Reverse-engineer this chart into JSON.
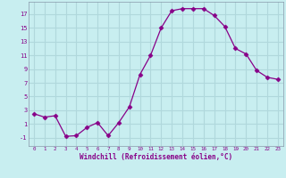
{
  "x": [
    0,
    1,
    2,
    3,
    4,
    5,
    6,
    7,
    8,
    9,
    10,
    11,
    12,
    13,
    14,
    15,
    16,
    17,
    18,
    19,
    20,
    21,
    22,
    23
  ],
  "y": [
    2.5,
    2.0,
    2.2,
    -0.8,
    -0.7,
    0.5,
    1.2,
    -0.7,
    1.2,
    3.5,
    8.2,
    11.0,
    15.0,
    17.5,
    17.8,
    17.8,
    17.8,
    16.8,
    15.2,
    12.0,
    11.2,
    8.8,
    7.8,
    7.5
  ],
  "line_color": "#880088",
  "marker": "D",
  "marker_size": 2.5,
  "bg_color": "#c8eef0",
  "grid_color": "#b0d8dc",
  "xlabel": "Windchill (Refroidissement éolien,°C)",
  "xlabel_color": "#880088",
  "tick_color": "#880088",
  "yticks": [
    -1,
    1,
    3,
    5,
    7,
    9,
    11,
    13,
    15,
    17
  ],
  "xticks": [
    0,
    1,
    2,
    3,
    4,
    5,
    6,
    7,
    8,
    9,
    10,
    11,
    12,
    13,
    14,
    15,
    16,
    17,
    18,
    19,
    20,
    21,
    22,
    23
  ],
  "ylim": [
    -2.2,
    18.8
  ],
  "xlim": [
    -0.5,
    23.5
  ]
}
